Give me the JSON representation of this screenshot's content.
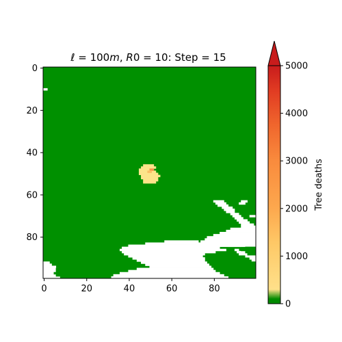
{
  "chart_data": {
    "type": "heatmap",
    "title": "ℓ = 100m,  R0 = 10:  Step = 15",
    "title_parts": {
      "l": "ℓ",
      "l_rest": " = 100",
      "m": "m",
      "r": ", ",
      "R": "R",
      "R_rest": "0 = 10:  Step = 15"
    },
    "grid_size": [
      100,
      100
    ],
    "x_ticks": [
      0,
      20,
      40,
      60,
      80
    ],
    "y_ticks": [
      0,
      20,
      40,
      60,
      80
    ],
    "y_axis_inverted": true,
    "colorbar": {
      "label": "Tree deaths",
      "min": 0,
      "max": 5000,
      "ticks": [
        0,
        1000,
        2000,
        3000,
        4000,
        5000
      ],
      "extend": "max",
      "colors": [
        "#008a00",
        "#ffe08a",
        "#fec967",
        "#fda84e",
        "#f98b3d",
        "#f0662d",
        "#e03a22",
        "#c81c1c"
      ]
    },
    "legend_colors": {
      "healthy": "#009000",
      "empty": "#ffffff",
      "low_deaths": "#fde48a",
      "mid_deaths": "#fcbf66",
      "high_deaths": "#f4964a"
    },
    "infection_cluster": {
      "center_x": 50,
      "center_y": 49,
      "cells": [
        {
          "x": 50,
          "y": 48,
          "deaths": 1600
        },
        {
          "x": 51,
          "y": 48,
          "deaths": 1400
        },
        {
          "x": 49,
          "y": 49,
          "deaths": 900
        },
        {
          "x": 50,
          "y": 49,
          "deaths": 1200
        }
      ],
      "outer_rows": [
        [
          48,
          45,
          51
        ],
        [
          49,
          45,
          52
        ],
        [
          50,
          45,
          53
        ],
        [
          51,
          46,
          54
        ],
        [
          52,
          46,
          53
        ],
        [
          53,
          47,
          53
        ],
        [
          54,
          47,
          52
        ],
        [
          46,
          47,
          51
        ],
        [
          47,
          46,
          52
        ]
      ],
      "outer_value": 300
    },
    "empty_regions": {
      "top_left_cell": [
        0,
        10
      ],
      "coast_right": [
        [
          63,
          80,
          84
        ],
        [
          64,
          81,
          85
        ],
        [
          65,
          82,
          86
        ],
        [
          63,
          93,
          95
        ],
        [
          64,
          92,
          94
        ],
        [
          66,
          84,
          88
        ],
        [
          67,
          85,
          89
        ],
        [
          68,
          86,
          89
        ],
        [
          69,
          88,
          91
        ],
        [
          70,
          89,
          92
        ],
        [
          70,
          97,
          99
        ],
        [
          71,
          90,
          93
        ],
        [
          72,
          91,
          95
        ],
        [
          73,
          92,
          96
        ],
        [
          74,
          93,
          98
        ],
        [
          75,
          93,
          99
        ],
        [
          76,
          88,
          99
        ],
        [
          77,
          86,
          99
        ],
        [
          78,
          83,
          99
        ],
        [
          79,
          80,
          99
        ],
        [
          80,
          77,
          99
        ],
        [
          81,
          76,
          99
        ],
        [
          82,
          74,
          99
        ],
        [
          83,
          73,
          99
        ],
        [
          84,
          72,
          99
        ]
      ],
      "coast_bottom": [
        [
          82,
          57,
          72
        ],
        [
          83,
          48,
          76
        ],
        [
          84,
          40,
          82
        ],
        [
          85,
          37,
          82
        ],
        [
          86,
          36,
          85
        ],
        [
          87,
          37,
          80
        ],
        [
          88,
          38,
          75
        ],
        [
          89,
          40,
          74
        ],
        [
          90,
          42,
          75
        ],
        [
          91,
          44,
          75
        ],
        [
          92,
          46,
          76
        ],
        [
          93,
          48,
          77
        ],
        [
          94,
          50,
          78
        ],
        [
          95,
          44,
          79
        ],
        [
          96,
          40,
          80
        ],
        [
          97,
          36,
          82
        ],
        [
          98,
          33,
          84
        ],
        [
          99,
          32,
          86
        ]
      ],
      "coast_bottom_left": [
        [
          92,
          0,
          2
        ],
        [
          93,
          0,
          3
        ],
        [
          94,
          0,
          5
        ],
        [
          95,
          0,
          6
        ],
        [
          96,
          0,
          6
        ],
        [
          97,
          0,
          5
        ],
        [
          98,
          0,
          6
        ],
        [
          99,
          0,
          8
        ]
      ],
      "bottom_right_holes": [
        [
          84,
          87,
          92
        ],
        [
          86,
          90,
          91
        ],
        [
          87,
          91,
          94
        ],
        [
          88,
          92,
          95
        ],
        [
          89,
          95,
          99
        ],
        [
          90,
          97,
          99
        ],
        [
          91,
          98,
          99
        ]
      ],
      "bottom_right_green": [
        [
          85,
          95,
          99
        ],
        [
          86,
          93,
          99
        ],
        [
          87,
          95,
          99
        ],
        [
          88,
          96,
          99
        ],
        [
          92,
          79,
          99
        ],
        [
          93,
          80,
          99
        ],
        [
          94,
          82,
          99
        ],
        [
          95,
          84,
          99
        ],
        [
          96,
          86,
          99
        ],
        [
          97,
          88,
          99
        ],
        [
          98,
          90,
          99
        ],
        [
          99,
          90,
          99
        ]
      ],
      "bottom_left_green": [
        [
          95,
          6,
          8
        ],
        [
          96,
          6,
          8
        ],
        [
          97,
          5,
          8
        ],
        [
          98,
          6,
          8
        ],
        [
          99,
          8,
          9
        ]
      ]
    }
  }
}
